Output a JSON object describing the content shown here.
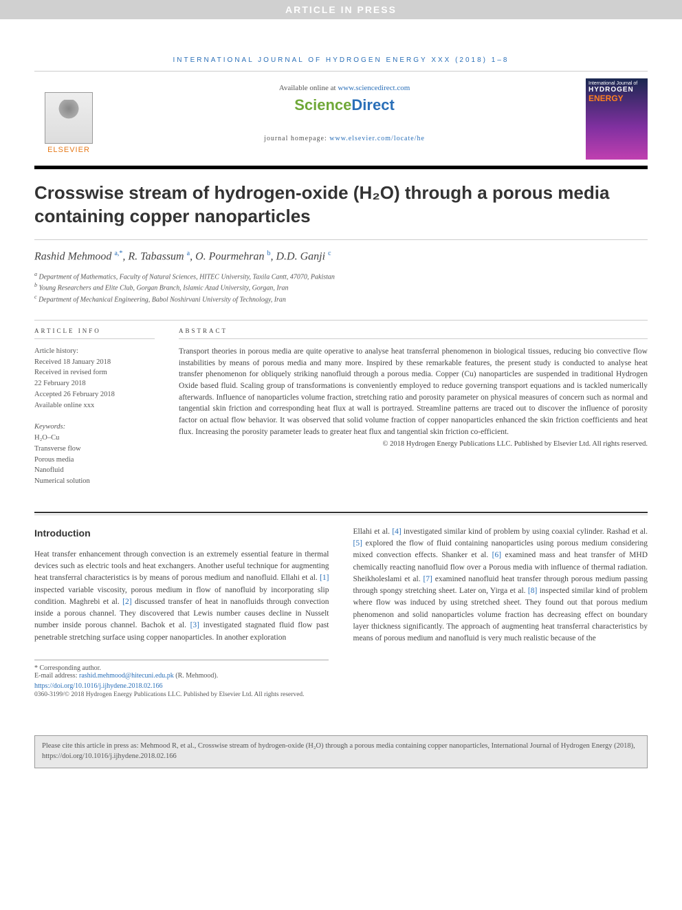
{
  "banner": "ARTICLE IN PRESS",
  "journal_header": "INTERNATIONAL JOURNAL OF HYDROGEN ENERGY XXX (2018) 1–8",
  "elsevier": "ELSEVIER",
  "available_prefix": "Available online at ",
  "available_link": "www.sciencedirect.com",
  "sd_logo_1": "Science",
  "sd_logo_2": "Direct",
  "homepage_prefix": "journal homepage: ",
  "homepage_link": "www.elsevier.com/locate/he",
  "cover": {
    "line1": "International Journal of",
    "line2": "HYDROGEN",
    "line3": "ENERGY"
  },
  "title": "Crosswise stream of hydrogen-oxide (H₂O) through a porous media containing copper nanoparticles",
  "authors_html": "Rashid Mehmood <span class='sup'>a,*</span>, R. Tabassum <span class='sup'>a</span>, O. Pourmehran <span class='sup'>b</span>, D.D. Ganji <span class='sup'>c</span>",
  "affils": [
    "Department of Mathematics, Faculty of Natural Sciences, HITEC University, Taxila Cantt, 47070, Pakistan",
    "Young Researchers and Elite Club, Gorgan Branch, Islamic Azad University, Gorgan, Iran",
    "Department of Mechanical Engineering, Babol Noshirvani University of Technology, Iran"
  ],
  "affil_marks": [
    "a",
    "b",
    "c"
  ],
  "info_head": "ARTICLE INFO",
  "abs_head": "ABSTRACT",
  "history_label": "Article history:",
  "history": [
    "Received 18 January 2018",
    "Received in revised form",
    "22 February 2018",
    "Accepted 26 February 2018",
    "Available online xxx"
  ],
  "keywords_label": "Keywords:",
  "keywords": [
    "H₂O–Cu",
    "Transverse flow",
    "Porous media",
    "Nanofluid",
    "Numerical solution"
  ],
  "abstract": "Transport theories in porous media are quite operative to analyse heat transferral phenomenon in biological tissues, reducing bio convective flow instabilities by means of porous media and many more. Inspired by these remarkable features, the present study is conducted to analyse heat transfer phenomenon for obliquely striking nanofluid through a porous media. Copper (Cu) nanoparticles are suspended in traditional Hydrogen Oxide based fluid. Scaling group of transformations is conveniently employed to reduce governing transport equations and is tackled numerically afterwards. Influence of nanoparticles volume fraction, stretching ratio and porosity parameter on physical measures of concern such as normal and tangential skin friction and corresponding heat flux at wall is portrayed. Streamline patterns are traced out to discover the influence of porosity factor on actual flow behavior. It was observed that solid volume fraction of copper nanoparticles enhanced the skin friction coefficients and heat flux. Increasing the porosity parameter leads to greater heat flux and tangential skin friction co-efficient.",
  "abs_copyright": "© 2018 Hydrogen Energy Publications LLC. Published by Elsevier Ltd. All rights reserved.",
  "intro_head": "Introduction",
  "intro_col1": "Heat transfer enhancement through convection is an extremely essential feature in thermal devices such as electric tools and heat exchangers. Another useful technique for augmenting heat transferral characteristics is by means of porous medium and nanofluid. Ellahi et al. [1] inspected variable viscosity, porous medium in flow of nanofluid by incorporating slip condition. Maghrebi et al. [2] discussed transfer of heat in nanofluids through convection inside a porous channel. They discovered that Lewis number causes decline in Nusselt number inside porous channel. Bachok et al. [3] investigated stagnated fluid flow past penetrable stretching surface using copper nanoparticles. In another exploration",
  "intro_col2": "Ellahi et al. [4] investigated similar kind of problem by using coaxial cylinder. Rashad et al. [5] explored the flow of fluid containing nanoparticles using porous medium considering mixed convection effects. Shanker et al. [6] examined mass and heat transfer of MHD chemically reacting nanofluid flow over a Porous media with influence of thermal radiation. Sheikholeslami et al. [7] examined nanofluid heat transfer through porous medium passing through spongy stretching sheet. Later on, Yirga et al. [8] inspected similar kind of problem where flow was induced by using stretched sheet. They found out that porous medium phenomenon and solid nanoparticles volume fraction has decreasing effect on boundary layer thickness significantly. The approach of augmenting heat transferral characteristics by means of porous medium and nanofluid is very much realistic because of the",
  "corr_label": "* Corresponding author.",
  "email_label": "E-mail address: ",
  "email": "rashid.mehmood@hitecuni.edu.pk",
  "email_suffix": " (R. Mehmood).",
  "doi": "https://doi.org/10.1016/j.ijhydene.2018.02.166",
  "issn_copy": "0360-3199/© 2018 Hydrogen Energy Publications LLC. Published by Elsevier Ltd. All rights reserved.",
  "cite_box": "Please cite this article in press as: Mehmood R, et al., Crosswise stream of hydrogen-oxide (H₂O) through a porous media containing copper nanoparticles, International Journal of Hydrogen Energy (2018), https://doi.org/10.1016/j.ijhydene.2018.02.166",
  "colors": {
    "link": "#2a6fb8",
    "orange": "#e67817",
    "green": "#6fa838"
  }
}
